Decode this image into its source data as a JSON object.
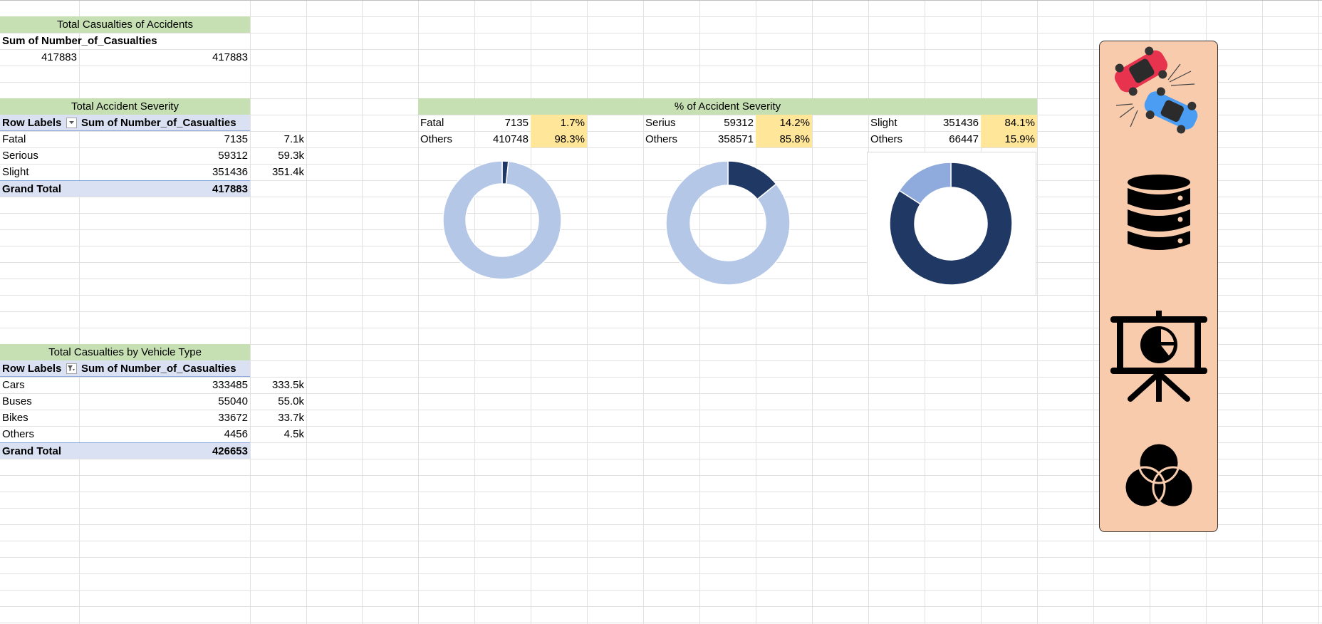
{
  "casualties": {
    "title": "Total Casualties of Accidents",
    "header": "Sum of Number_of_Casualties",
    "value": "417883",
    "value_repeat": "417883"
  },
  "severity": {
    "title": "Total Accident Severity",
    "col1": "Row Labels",
    "col2": "Sum of Number_of_Casualties",
    "rows": [
      {
        "label": "Fatal",
        "value": "7135",
        "short": "7.1k"
      },
      {
        "label": "Serious",
        "value": "59312",
        "short": "59.3k"
      },
      {
        "label": "Slight",
        "value": "351436",
        "short": "351.4k"
      }
    ],
    "total_label": "Grand Total",
    "total_value": "417883"
  },
  "vehicle": {
    "title": "Total Casualties by Vehicle Type",
    "col1": "Row Labels",
    "col2": "Sum of Number_of_Casualties",
    "rows": [
      {
        "label": "Cars",
        "value": "333485",
        "short": "333.5k"
      },
      {
        "label": "Buses",
        "value": "55040",
        "short": "55.0k"
      },
      {
        "label": "Bikes",
        "value": "33672",
        "short": "33.7k"
      },
      {
        "label": "Others",
        "value": "4456",
        "short": "4.5k"
      }
    ],
    "total_label": "Grand Total",
    "total_value": "426653"
  },
  "pct": {
    "title": "% of Accident Severity",
    "blocks": [
      {
        "label": "Fatal",
        "value": "7135",
        "pct": "1.7%",
        "other_label": "Others",
        "other_value": "410748",
        "other_pct": "98.3%"
      },
      {
        "label": "Serius",
        "value": "59312",
        "pct": "14.2%",
        "other_label": "Others",
        "other_value": "358571",
        "other_pct": "85.8%"
      },
      {
        "label": "Slight",
        "value": "351436",
        "pct": "84.1%",
        "other_label": "Others",
        "other_value": "66447",
        "other_pct": "15.9%"
      }
    ]
  },
  "chart_data": [
    {
      "type": "pie",
      "donut": true,
      "categories": [
        "Fatal",
        "Others"
      ],
      "values": [
        7135,
        410748
      ],
      "colors": [
        "#203864",
        "#b4c7e7"
      ]
    },
    {
      "type": "pie",
      "donut": true,
      "categories": [
        "Serius",
        "Others"
      ],
      "values": [
        59312,
        358571
      ],
      "colors": [
        "#203864",
        "#b4c7e7"
      ]
    },
    {
      "type": "pie",
      "donut": true,
      "categories": [
        "Slight",
        "Others"
      ],
      "values": [
        351436,
        66447
      ],
      "colors": [
        "#203864",
        "#8faadc"
      ]
    }
  ],
  "panel": {
    "background": "#f8cbad",
    "icons": [
      "car-crash-icon",
      "database-icon",
      "presentation-chart-icon",
      "venn-diagram-icon"
    ]
  },
  "colors": {
    "title_fill": "#c6e0b4",
    "header_fill": "#d9e1f2",
    "pct_fill": "#ffe699",
    "donut_dark": "#203864",
    "donut_light": "#b4c7e7"
  }
}
